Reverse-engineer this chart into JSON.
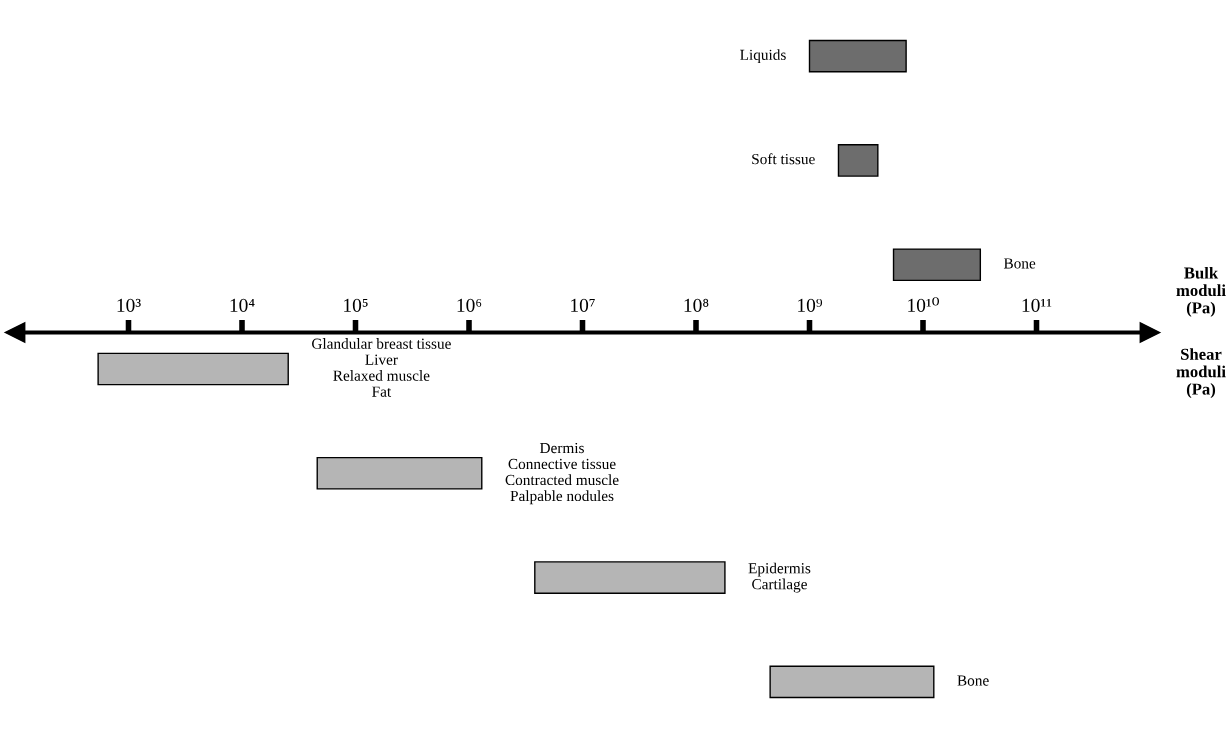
{
  "chart_data": {
    "type": "bar",
    "orientation": "horizontal",
    "log": "x",
    "grid": false,
    "legend": false,
    "categories": [
      "Liquids",
      "Soft tissue",
      "Bone",
      "Glandular breast tissue\nLiver\nRelaxed muscle\nFat",
      "Dermis\nConnective tissue\nContracted muscle\nPalpable nodules",
      "Epidermis\nCartilage",
      "Bone"
    ],
    "xlim": [
      100,
      1000000000000
    ],
    "xticks": [
      {
        "value": 1000,
        "label": "10³"
      },
      {
        "value": 10000,
        "label": "10⁴"
      },
      {
        "value": 100000,
        "label": "10⁵"
      },
      {
        "value": 1000000,
        "label": "10⁶"
      },
      {
        "value": 10000000,
        "label": "10⁷"
      },
      {
        "value": 100000000,
        "label": "10⁸"
      },
      {
        "value": 1000000000,
        "label": "10⁹"
      },
      {
        "value": 10000000000,
        "label": "10¹⁰"
      },
      {
        "value": 100000000000,
        "label": "10¹¹"
      }
    ],
    "colors": [
      "#6d6d6d",
      "#6d6d6d",
      "#6d6d6d",
      "#b5b5b5",
      "#b5b5b5",
      "#b5b5b5",
      "#b5b5b5"
    ],
    "base": [
      1000000000,
      1800000000,
      5500000000,
      540,
      46000,
      3800000,
      450000000
    ],
    "values": [
      6100000000,
      2200000000,
      26500000000,
      25000,
      1250000,
      176000000,
      12000000000
    ],
    "annotations": [
      "Bulk\nmoduli\n(Pa)",
      "Shear\nmoduli\n(Pa)"
    ]
  }
}
